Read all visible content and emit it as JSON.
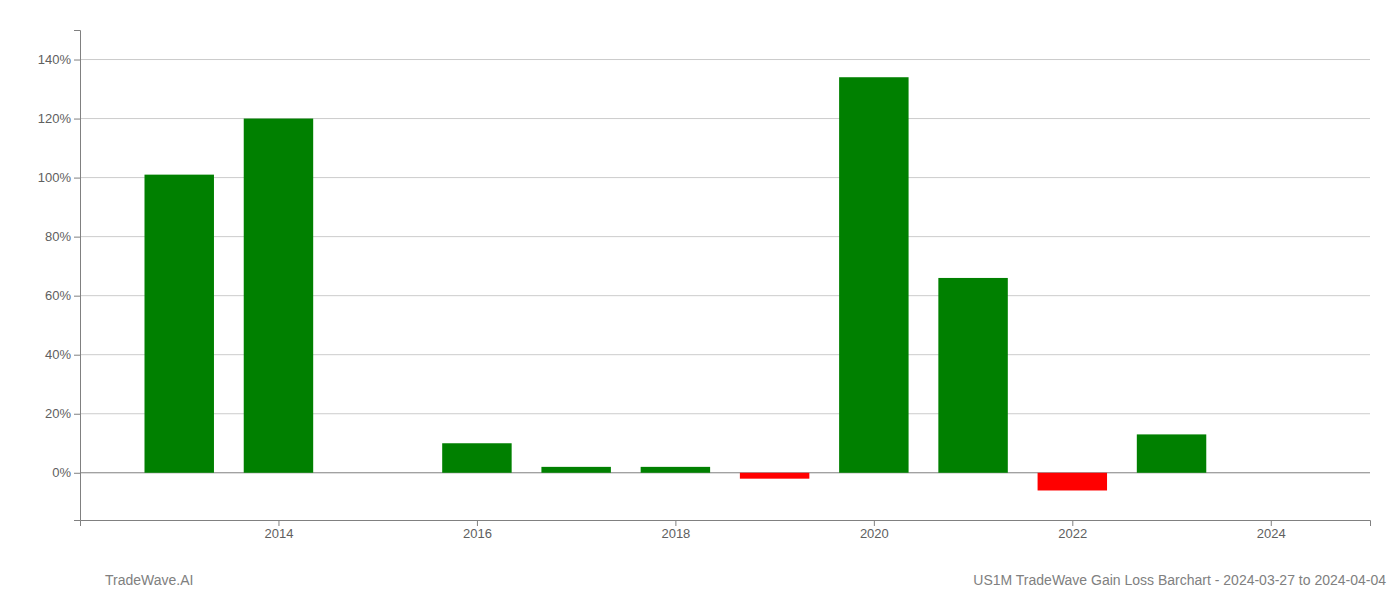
{
  "chart_data": {
    "type": "bar",
    "title": "US1M TradeWave Gain Loss Barchart - 2024-03-27 to 2024-04-04",
    "annotations": [
      "TradeWave.AI"
    ],
    "x": [
      2013,
      2014,
      2016,
      2017,
      2018,
      2019,
      2020,
      2021,
      2022,
      2023
    ],
    "values": [
      1.01,
      1.2,
      0.1,
      0.02,
      0.02,
      -0.02,
      1.34,
      0.66,
      -0.06,
      0.13
    ],
    "colors": [
      "#008000",
      "#008000",
      "#008000",
      "#008000",
      "#008000",
      "#ff0000",
      "#008000",
      "#008000",
      "#ff0000",
      "#008000"
    ],
    "xlim": [
      2012.0,
      2025.0
    ],
    "xticks": [
      2014,
      2016,
      2018,
      2020,
      2022,
      2024
    ],
    "ylim": [
      -0.16,
      1.5
    ],
    "yticks": [
      {
        "value": 0.0,
        "label": "0%"
      },
      {
        "value": 0.2,
        "label": "20%"
      },
      {
        "value": 0.4,
        "label": "40%"
      },
      {
        "value": 0.6,
        "label": "60%"
      },
      {
        "value": 0.8,
        "label": "80%"
      },
      {
        "value": 1.0,
        "label": "100%"
      },
      {
        "value": 1.2,
        "label": "120%"
      },
      {
        "value": 1.4,
        "label": "140%"
      }
    ],
    "grid": true
  }
}
